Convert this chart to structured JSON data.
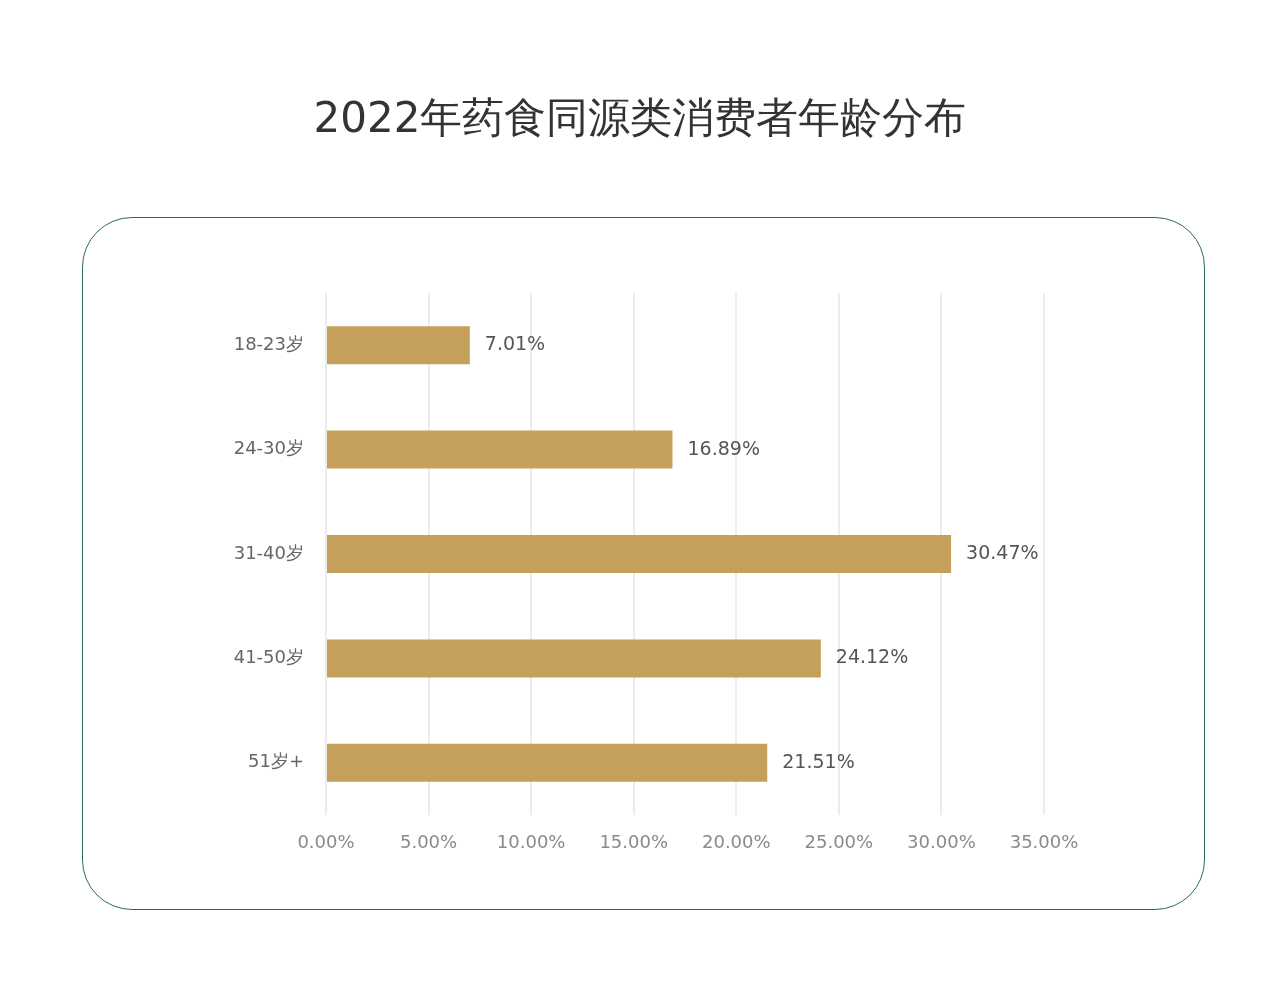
{
  "chart_data": {
    "type": "bar",
    "orientation": "horizontal",
    "title": "2022年药食同源类消费者年龄分布",
    "categories": [
      "18-23岁",
      "24-30岁",
      "31-40岁",
      "41-50岁",
      "51岁+"
    ],
    "values": [
      7.01,
      16.89,
      30.47,
      24.12,
      21.51
    ],
    "value_labels": [
      "7.01%",
      "16.89%",
      "30.47%",
      "24.12%",
      "21.51%"
    ],
    "color": "#c4a05a",
    "xlim": [
      0,
      35
    ],
    "xticks": [
      {
        "value": 0,
        "label": "0.00%"
      },
      {
        "value": 5,
        "label": "5.00%"
      },
      {
        "value": 10,
        "label": "10.00%"
      },
      {
        "value": 15,
        "label": "15.00%"
      },
      {
        "value": 20,
        "label": "20.00%"
      },
      {
        "value": 25,
        "label": "25.00%"
      },
      {
        "value": 30,
        "label": "30.00%"
      },
      {
        "value": 35,
        "label": "35.00%"
      }
    ],
    "grid": "x",
    "legend": false
  }
}
